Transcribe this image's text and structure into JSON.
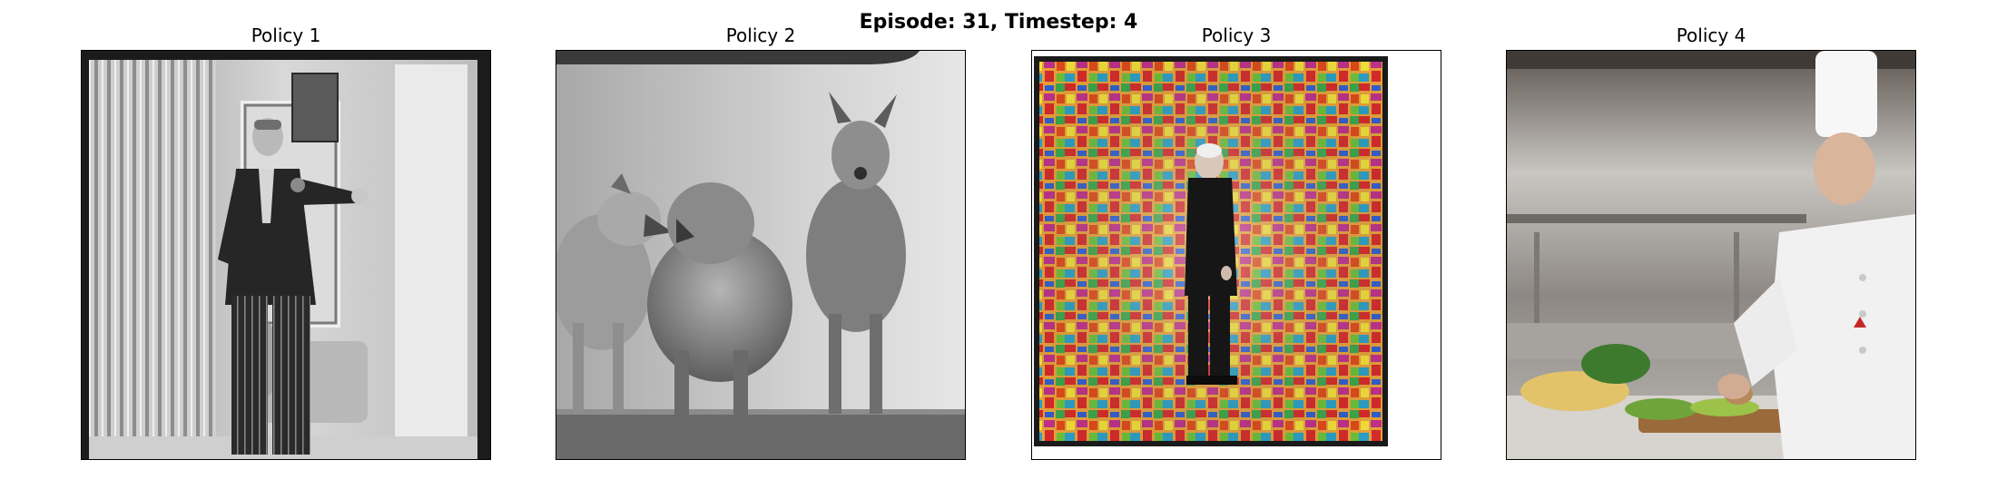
{
  "figure": {
    "title": "Episode: 31, Timestep: 4"
  },
  "panels": [
    {
      "title": "Policy 1",
      "image": "black-and-white photo of a man in a suit holding a flower in a room with curtains and a sofa"
    },
    {
      "title": "Policy 2",
      "image": "black-and-white photo of three furry dog-like animals standing on a platform"
    },
    {
      "title": "Policy 3",
      "image": "man in a dark suit standing in front of a colorful mosaic of radiating brush strokes"
    },
    {
      "title": "Policy 4",
      "image": "chef in white uniform and toque preparing vegetables on a cutting board in a steel kitchen"
    }
  ]
}
